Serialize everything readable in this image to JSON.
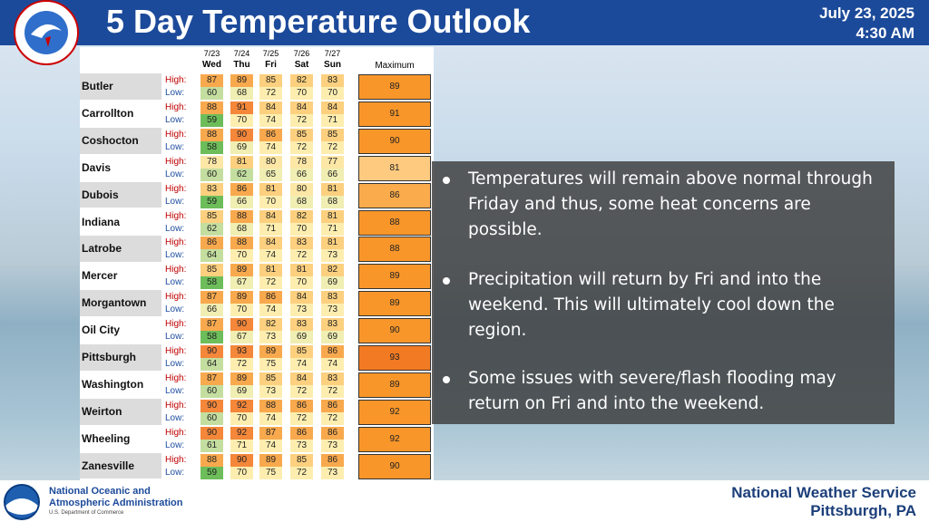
{
  "header": {
    "title": "5 Day Temperature Outlook",
    "date": "July 23, 2025",
    "time": "4:30 AM"
  },
  "table": {
    "columns": [
      {
        "date": "7/23",
        "day": "Wed"
      },
      {
        "date": "7/24",
        "day": "Thu"
      },
      {
        "date": "7/25",
        "day": "Fri"
      },
      {
        "date": "7/26",
        "day": "Sat"
      },
      {
        "date": "7/27",
        "day": "Sun"
      }
    ],
    "max_header": "Maximum",
    "high_label": "High:",
    "low_label": "Low:",
    "rows": [
      {
        "name": "Butler",
        "high": [
          87,
          89,
          85,
          82,
          83
        ],
        "low": [
          60,
          68,
          72,
          70,
          70
        ],
        "max": 89
      },
      {
        "name": "Carrollton",
        "high": [
          88,
          91,
          84,
          84,
          84
        ],
        "low": [
          59,
          70,
          74,
          72,
          71
        ],
        "max": 91
      },
      {
        "name": "Coshocton",
        "high": [
          88,
          90,
          86,
          85,
          85
        ],
        "low": [
          58,
          69,
          74,
          72,
          72
        ],
        "max": 90
      },
      {
        "name": "Davis",
        "high": [
          78,
          81,
          80,
          78,
          77
        ],
        "low": [
          60,
          62,
          65,
          66,
          66
        ],
        "max": 81
      },
      {
        "name": "Dubois",
        "high": [
          83,
          86,
          81,
          80,
          81
        ],
        "low": [
          59,
          66,
          70,
          68,
          68
        ],
        "max": 86
      },
      {
        "name": "Indiana",
        "high": [
          85,
          88,
          84,
          82,
          81
        ],
        "low": [
          62,
          68,
          71,
          70,
          71
        ],
        "max": 88
      },
      {
        "name": "Latrobe",
        "high": [
          86,
          88,
          84,
          83,
          81
        ],
        "low": [
          64,
          70,
          74,
          72,
          73
        ],
        "max": 88
      },
      {
        "name": "Mercer",
        "high": [
          85,
          89,
          81,
          81,
          82
        ],
        "low": [
          58,
          67,
          72,
          70,
          69
        ],
        "max": 89
      },
      {
        "name": "Morgantown",
        "high": [
          87,
          89,
          86,
          84,
          83
        ],
        "low": [
          66,
          70,
          74,
          73,
          73
        ],
        "max": 89
      },
      {
        "name": "Oil City",
        "high": [
          87,
          90,
          82,
          83,
          83
        ],
        "low": [
          58,
          67,
          73,
          69,
          69
        ],
        "max": 90
      },
      {
        "name": "Pittsburgh",
        "high": [
          90,
          93,
          89,
          85,
          86
        ],
        "low": [
          64,
          72,
          75,
          74,
          74
        ],
        "max": 93
      },
      {
        "name": "Washington",
        "high": [
          87,
          89,
          85,
          84,
          83
        ],
        "low": [
          60,
          69,
          73,
          72,
          72
        ],
        "max": 89
      },
      {
        "name": "Weirton",
        "high": [
          90,
          92,
          88,
          86,
          86
        ],
        "low": [
          60,
          70,
          74,
          72,
          72
        ],
        "max": 92
      },
      {
        "name": "Wheeling",
        "high": [
          90,
          92,
          87,
          86,
          86
        ],
        "low": [
          61,
          71,
          74,
          73,
          73
        ],
        "max": 92
      },
      {
        "name": "Zanesville",
        "high": [
          88,
          90,
          89,
          85,
          86
        ],
        "low": [
          59,
          70,
          75,
          72,
          73
        ],
        "max": 90
      }
    ]
  },
  "bullets": [
    "Temperatures will remain above normal through Friday and thus, some heat concerns are possible.",
    "Precipitation will return by Fri and into the weekend. This will ultimately cool down the region.",
    "Some issues with severe/flash flooding may return on Fri and into the weekend."
  ],
  "footer": {
    "noaa_line1": "National Oceanic and",
    "noaa_line2": "Atmospheric Administration",
    "noaa_line3": "U.S. Department of Commerce",
    "office": "National Weather Service",
    "location": "Pittsburgh, PA"
  }
}
